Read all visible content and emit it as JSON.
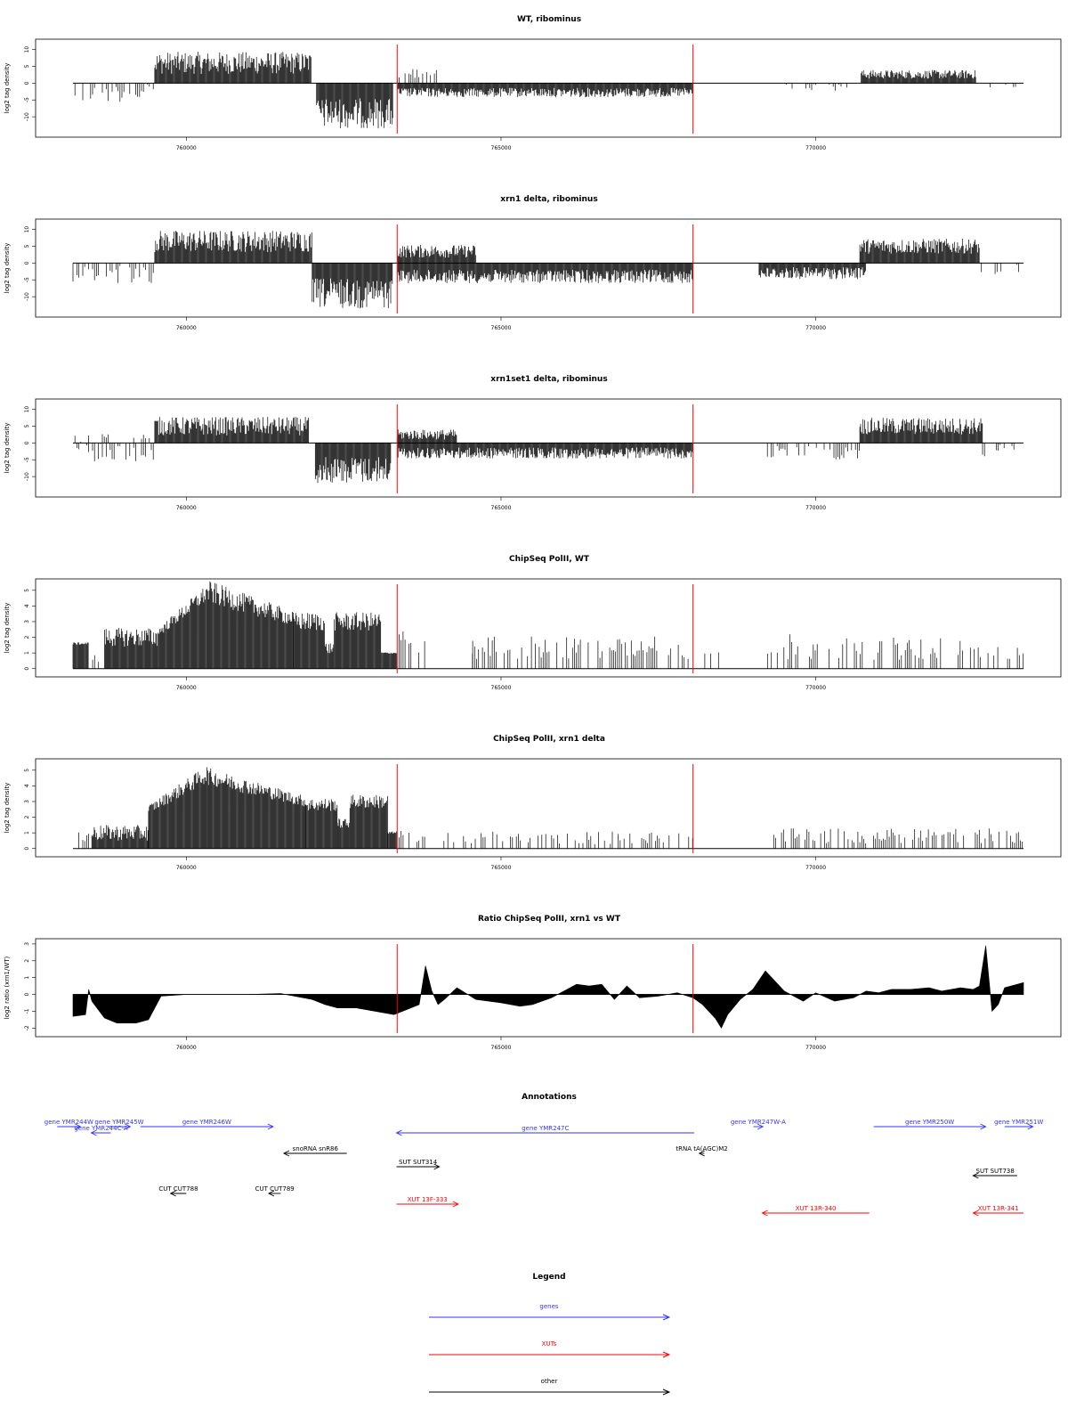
{
  "figure": {
    "title_annotations": "Annotations",
    "title_legend": "Legend"
  },
  "chart_data": [
    {
      "type": "bar",
      "id": "wt-ribominus",
      "title": "WT, ribominus",
      "ylabel": "log2 tag density",
      "xlim": [
        758200,
        773300
      ],
      "ylim": [
        -15,
        12
      ],
      "yticks": [
        -10,
        -5,
        0,
        5,
        10
      ],
      "xticks": [
        760000,
        765000,
        770000
      ],
      "xticklabels": [
        "760000",
        "765000",
        "770000"
      ],
      "marker_lines": [
        763350,
        768050
      ],
      "grid": false,
      "profile": [
        {
          "x": [
            758200,
            759500
          ],
          "mode": "sparse",
          "sign": -1,
          "level": 3,
          "var": 0.9,
          "density": 0.55
        },
        {
          "x": [
            759500,
            761990
          ],
          "mode": "dense",
          "sign": 1,
          "level": 6,
          "var": 0.55
        },
        {
          "x": [
            762070,
            763280
          ],
          "mode": "dense",
          "sign": -1,
          "level": 9,
          "var": 0.5
        },
        {
          "x": [
            763350,
            768050
          ],
          "mode": "dense",
          "sign": -1,
          "level": 2.8,
          "var": 0.5
        },
        {
          "x": [
            763350,
            764000
          ],
          "mode": "sparse",
          "sign": 1,
          "level": 2.5,
          "var": 0.8,
          "density": 0.55
        },
        {
          "x": [
            769500,
            770500
          ],
          "mode": "sparse",
          "sign": -1,
          "level": 1.5,
          "var": 0.8,
          "density": 0.3
        },
        {
          "x": [
            770720,
            772550
          ],
          "mode": "dense",
          "sign": 1,
          "level": 2.6,
          "var": 0.5
        },
        {
          "x": [
            772550,
            773300
          ],
          "mode": "sparse",
          "sign": -1,
          "level": 1,
          "var": 0.8,
          "density": 0.2
        }
      ]
    },
    {
      "type": "bar",
      "id": "xrn1-ribominus",
      "title": "xrn1 delta, ribominus",
      "ylabel": "log2 tag density",
      "xlim": [
        758200,
        773300
      ],
      "ylim": [
        -15,
        12
      ],
      "yticks": [
        -10,
        -5,
        0,
        5,
        10
      ],
      "xticks": [
        760000,
        765000,
        770000
      ],
      "xticklabels": [
        "760000",
        "765000",
        "770000"
      ],
      "marker_lines": [
        763350,
        768050
      ],
      "grid": false,
      "profile": [
        {
          "x": [
            758200,
            759500
          ],
          "mode": "sparse",
          "sign": -1,
          "level": 3.5,
          "var": 0.8,
          "density": 0.6
        },
        {
          "x": [
            759500,
            762000
          ],
          "mode": "dense",
          "sign": 1,
          "level": 6.5,
          "var": 0.5
        },
        {
          "x": [
            762000,
            763280
          ],
          "mode": "dense",
          "sign": -1,
          "level": 9,
          "var": 0.5
        },
        {
          "x": [
            763350,
            768050
          ],
          "mode": "dense",
          "sign": -1,
          "level": 4,
          "var": 0.5
        },
        {
          "x": [
            763350,
            764600
          ],
          "mode": "dense",
          "sign": 1,
          "level": 3.5,
          "var": 0.55
        },
        {
          "x": [
            769100,
            770800
          ],
          "mode": "dense",
          "sign": -1,
          "level": 3,
          "var": 0.6
        },
        {
          "x": [
            770700,
            772600
          ],
          "mode": "dense",
          "sign": 1,
          "level": 5,
          "var": 0.45
        },
        {
          "x": [
            772600,
            773300
          ],
          "mode": "sparse",
          "sign": -1,
          "level": 2.5,
          "var": 0.8,
          "density": 0.5
        }
      ]
    },
    {
      "type": "bar",
      "id": "xrn1set1-ribominus",
      "title": "xrn1set1 delta, ribominus",
      "ylabel": "log2 tag density",
      "xlim": [
        758200,
        773300
      ],
      "ylim": [
        -15,
        12
      ],
      "yticks": [
        -10,
        -5,
        0,
        5,
        10
      ],
      "xticks": [
        760000,
        765000,
        770000
      ],
      "xticklabels": [
        "760000",
        "765000",
        "770000"
      ],
      "marker_lines": [
        763350,
        768050
      ],
      "grid": false,
      "profile": [
        {
          "x": [
            758200,
            759500
          ],
          "mode": "sparse",
          "sign": -1,
          "level": 3,
          "var": 0.9,
          "density": 0.55
        },
        {
          "x": [
            758200,
            759500
          ],
          "mode": "sparse",
          "sign": 1,
          "level": 1.5,
          "var": 0.8,
          "density": 0.25
        },
        {
          "x": [
            759500,
            761950
          ],
          "mode": "dense",
          "sign": 1,
          "level": 5,
          "var": 0.55
        },
        {
          "x": [
            762050,
            763250
          ],
          "mode": "dense",
          "sign": -1,
          "level": 8,
          "var": 0.5
        },
        {
          "x": [
            763350,
            768050
          ],
          "mode": "dense",
          "sign": -1,
          "level": 3,
          "var": 0.55
        },
        {
          "x": [
            763350,
            764300
          ],
          "mode": "dense",
          "sign": 1,
          "level": 2.5,
          "var": 0.6
        },
        {
          "x": [
            769200,
            770700
          ],
          "mode": "sparse",
          "sign": -1,
          "level": 3,
          "var": 0.7,
          "density": 0.55
        },
        {
          "x": [
            770700,
            772650
          ],
          "mode": "dense",
          "sign": 1,
          "level": 5,
          "var": 0.5
        },
        {
          "x": [
            772650,
            773300
          ],
          "mode": "sparse",
          "sign": -1,
          "level": 2.5,
          "var": 0.8,
          "density": 0.5
        }
      ]
    },
    {
      "type": "bar",
      "id": "chipseq-wt",
      "title": "ChipSeq PolII, WT",
      "ylabel": "log2 tag density",
      "xlim": [
        758200,
        773300
      ],
      "ylim": [
        -0.3,
        5.5
      ],
      "yticks": [
        0,
        1,
        2,
        3,
        4,
        5
      ],
      "xticks": [
        760000,
        765000,
        770000
      ],
      "xticklabels": [
        "760000",
        "765000",
        "770000"
      ],
      "marker_lines": [
        763350,
        768050
      ],
      "grid": false,
      "profile": [
        {
          "x": [
            758200,
            758450
          ],
          "mode": "dense",
          "sign": 1,
          "level": 1.6,
          "var": 0.05
        },
        {
          "x": [
            758450,
            758700
          ],
          "mode": "sparse",
          "sign": 1,
          "level": 0.7,
          "var": 0.7,
          "density": 0.25
        },
        {
          "x": [
            758700,
            759550
          ],
          "mode": "dense",
          "sign": 1,
          "level": 2,
          "var": 0.3
        },
        {
          "x": [
            759550,
            760350
          ],
          "mode": "dense",
          "sign": 1,
          "level": 4.1,
          "var": 0.12,
          "ramp": [
            2.3,
            4.9
          ]
        },
        {
          "x": [
            760350,
            761700
          ],
          "mode": "dense",
          "sign": 1,
          "level": 4,
          "var": 0.15,
          "ramp": [
            4.9,
            3.2
          ]
        },
        {
          "x": [
            761700,
            762200
          ],
          "mode": "dense",
          "sign": 1,
          "level": 3,
          "var": 0.2
        },
        {
          "x": [
            762200,
            762350
          ],
          "mode": "dense",
          "sign": 1,
          "level": 1.3,
          "var": 0.3
        },
        {
          "x": [
            762350,
            763100
          ],
          "mode": "dense",
          "sign": 1,
          "level": 3,
          "var": 0.2
        },
        {
          "x": [
            763100,
            763350
          ],
          "mode": "dense",
          "sign": 1,
          "level": 1,
          "var": 0.05
        },
        {
          "x": [
            763350,
            763800
          ],
          "mode": "sparse",
          "sign": 1,
          "level": 1.6,
          "var": 0.5,
          "density": 0.65
        },
        {
          "x": [
            763800,
            764550
          ],
          "mode": "sparse",
          "sign": 1,
          "level": 1,
          "var": 0.05,
          "density": 0.06
        },
        {
          "x": [
            764550,
            768050
          ],
          "mode": "sparse",
          "sign": 1,
          "level": 1.3,
          "var": 0.6,
          "density": 0.55
        },
        {
          "x": [
            768050,
            769400
          ],
          "mode": "sparse",
          "sign": 1,
          "level": 1,
          "var": 0.05,
          "density": 0.07
        },
        {
          "x": [
            769400,
            772300
          ],
          "mode": "sparse",
          "sign": 1,
          "level": 1.4,
          "var": 0.6,
          "density": 0.6
        },
        {
          "x": [
            772300,
            773300
          ],
          "mode": "sparse",
          "sign": 1,
          "level": 1,
          "var": 0.4,
          "density": 0.25
        }
      ]
    },
    {
      "type": "bar",
      "id": "chipseq-xrn1",
      "title": "ChipSeq PolII, xrn1 delta",
      "ylabel": "log2 tag density",
      "xlim": [
        758200,
        773300
      ],
      "ylim": [
        -0.3,
        5.5
      ],
      "yticks": [
        0,
        1,
        2,
        3,
        4,
        5
      ],
      "xticks": [
        760000,
        765000,
        770000
      ],
      "xticklabels": [
        "760000",
        "765000",
        "770000"
      ],
      "marker_lines": [
        763350,
        768050
      ],
      "grid": false,
      "profile": [
        {
          "x": [
            758200,
            758500
          ],
          "mode": "sparse",
          "sign": 1,
          "level": 0.8,
          "var": 0.6,
          "density": 0.5
        },
        {
          "x": [
            758500,
            759400
          ],
          "mode": "dense",
          "sign": 1,
          "level": 1,
          "var": 0.5
        },
        {
          "x": [
            759400,
            760350
          ],
          "mode": "dense",
          "sign": 1,
          "level": 3.8,
          "var": 0.12,
          "ramp": [
            2.5,
            4.8
          ]
        },
        {
          "x": [
            760350,
            761900
          ],
          "mode": "dense",
          "sign": 1,
          "level": 3.8,
          "var": 0.12,
          "ramp": [
            4.6,
            3
          ]
        },
        {
          "x": [
            761900,
            762400
          ],
          "mode": "dense",
          "sign": 1,
          "level": 2.8,
          "var": 0.15
        },
        {
          "x": [
            762400,
            762600
          ],
          "mode": "dense",
          "sign": 1,
          "level": 1.6,
          "var": 0.2
        },
        {
          "x": [
            762600,
            763200
          ],
          "mode": "dense",
          "sign": 1,
          "level": 3,
          "var": 0.15
        },
        {
          "x": [
            763200,
            763350
          ],
          "mode": "dense",
          "sign": 1,
          "level": 1,
          "var": 0.1
        },
        {
          "x": [
            763350,
            763800
          ],
          "mode": "sparse",
          "sign": 1,
          "level": 0.8,
          "var": 0.5,
          "density": 0.55
        },
        {
          "x": [
            764000,
            768050
          ],
          "mode": "sparse",
          "sign": 1,
          "level": 0.7,
          "var": 0.6,
          "density": 0.5
        },
        {
          "x": [
            769300,
            773300
          ],
          "mode": "sparse",
          "sign": 1,
          "level": 0.8,
          "var": 0.6,
          "density": 0.6
        }
      ]
    },
    {
      "type": "area",
      "id": "ratio-chipseq",
      "title": "Ratio ChipSeq PolII, xrn1 vs WT",
      "ylabel": "log2 ratio (xrn1/WT)",
      "xlim": [
        758200,
        773300
      ],
      "ylim": [
        -2.3,
        3.1
      ],
      "yticks": [
        -2,
        -1,
        0,
        1,
        2,
        3
      ],
      "xticks": [
        760000,
        765000,
        770000
      ],
      "xticklabels": [
        "760000",
        "765000",
        "770000"
      ],
      "marker_lines": [
        763350,
        768050
      ],
      "grid": false,
      "x": [
        758200,
        758400,
        758450,
        758500,
        758700,
        758900,
        759200,
        759400,
        759500,
        759600,
        760000,
        760500,
        761000,
        761500,
        762000,
        762200,
        762400,
        762700,
        763000,
        763300,
        763500,
        763700,
        763800,
        763900,
        764000,
        764100,
        764300,
        764600,
        765000,
        765300,
        765500,
        765800,
        766000,
        766200,
        766400,
        766600,
        766800,
        767000,
        767200,
        767500,
        767800,
        768050,
        768200,
        768400,
        768500,
        768600,
        768800,
        769000,
        769200,
        769500,
        769800,
        770000,
        770300,
        770600,
        770800,
        771000,
        771200,
        771500,
        771800,
        772000,
        772300,
        772500,
        772600,
        772700,
        772800,
        772900,
        773000,
        773300
      ],
      "y": [
        -1.3,
        -1.2,
        0.3,
        -0.4,
        -1.4,
        -1.7,
        -1.7,
        -1.5,
        -0.8,
        -0.1,
        0,
        0,
        0,
        0.05,
        -0.3,
        -0.6,
        -0.8,
        -0.8,
        -1,
        -1.2,
        -0.9,
        -0.6,
        1.7,
        0.2,
        -0.6,
        -0.3,
        0.4,
        -0.3,
        -0.5,
        -0.7,
        -0.6,
        -0.2,
        0.2,
        0.6,
        0.5,
        0.6,
        -0.3,
        0.5,
        -0.2,
        -0.1,
        0.1,
        -0.2,
        -0.6,
        -1.4,
        -2,
        -1.2,
        -0.3,
        0.3,
        1.4,
        0.2,
        -0.4,
        0.1,
        -0.4,
        -0.2,
        0.2,
        0.1,
        0.3,
        0.3,
        0.4,
        0.2,
        0.4,
        0.3,
        0.5,
        2.9,
        -1,
        -0.6,
        0.4,
        0.7
      ]
    }
  ],
  "annotations": {
    "title": "Annotations",
    "xlim": [
      758200,
      773300
    ],
    "items": [
      {
        "label": "gene YMR244W",
        "kind": "gene",
        "start": 757950,
        "end": 758320,
        "dir": 1,
        "lane": 0
      },
      {
        "label": "gene YMR245W",
        "kind": "gene",
        "start": 758760,
        "end": 759110,
        "dir": 1,
        "lane": 0
      },
      {
        "label": "gene YMR244C-A",
        "kind": "gene",
        "start": 758490,
        "end": 758800,
        "dir": -1,
        "lane": 1
      },
      {
        "label": "gene YMR246W",
        "kind": "gene",
        "start": 759270,
        "end": 761380,
        "dir": 1,
        "lane": 0
      },
      {
        "label": "gene YMR247C",
        "kind": "gene",
        "start": 763340,
        "end": 768070,
        "dir": -1,
        "lane": 1
      },
      {
        "label": "gene YMR247W-A",
        "kind": "gene",
        "start": 769010,
        "end": 769160,
        "dir": 1,
        "lane": 0
      },
      {
        "label": "gene YMR250W",
        "kind": "gene",
        "start": 770920,
        "end": 772700,
        "dir": 1,
        "lane": 0
      },
      {
        "label": "gene YMR251W",
        "kind": "gene",
        "start": 773000,
        "end": 773450,
        "dir": 1,
        "lane": 0
      },
      {
        "label": "snoRNA snR86",
        "kind": "other",
        "start": 761550,
        "end": 762550,
        "dir": -1,
        "lane": 2
      },
      {
        "label": "tRNA tA(AGC)M2",
        "kind": "other",
        "start": 768150,
        "end": 768230,
        "dir": -1,
        "lane": 2
      },
      {
        "label": "SUT SUT314",
        "kind": "other",
        "start": 763340,
        "end": 764020,
        "dir": 1,
        "lane": 3
      },
      {
        "label": "SUT SUT738",
        "kind": "other",
        "start": 772500,
        "end": 773200,
        "dir": -1,
        "lane": 4
      },
      {
        "label": "CUT CUT788",
        "kind": "other",
        "start": 759750,
        "end": 760000,
        "dir": -1,
        "lane": 5
      },
      {
        "label": "CUT CUT789",
        "kind": "other",
        "start": 761310,
        "end": 761500,
        "dir": -1,
        "lane": 5
      },
      {
        "label": "XUT 13F-333",
        "kind": "XUT",
        "start": 763340,
        "end": 764320,
        "dir": 1,
        "lane": 6
      },
      {
        "label": "XUT 13R-340",
        "kind": "XUT",
        "start": 769150,
        "end": 770850,
        "dir": -1,
        "lane": 7
      },
      {
        "label": "XUT 13R-341",
        "kind": "XUT",
        "start": 772500,
        "end": 773300,
        "dir": -1,
        "lane": 7
      }
    ]
  },
  "legend": {
    "title": "Legend",
    "entries": [
      {
        "label": "genes",
        "color": "#3333ff"
      },
      {
        "label": "XUTs",
        "color": "#ff0000"
      },
      {
        "label": "other",
        "color": "#000000"
      }
    ]
  },
  "colors": {
    "gene": "#3333ff",
    "XUT": "#ff0000",
    "other": "#000000",
    "marker": "#ff0000",
    "bars": "#000000"
  }
}
